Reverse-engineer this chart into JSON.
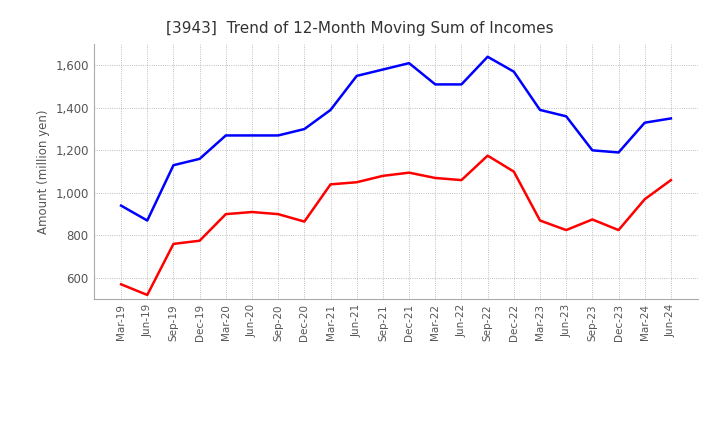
{
  "title": "[3943]  Trend of 12-Month Moving Sum of Incomes",
  "ylabel": "Amount (million yen)",
  "background_color": "#ffffff",
  "grid_color": "#aaaaaa",
  "x_labels": [
    "Mar-19",
    "Jun-19",
    "Sep-19",
    "Dec-19",
    "Mar-20",
    "Jun-20",
    "Sep-20",
    "Dec-20",
    "Mar-21",
    "Jun-21",
    "Sep-21",
    "Dec-21",
    "Mar-22",
    "Jun-22",
    "Sep-22",
    "Dec-22",
    "Mar-23",
    "Jun-23",
    "Sep-23",
    "Dec-23",
    "Mar-24",
    "Jun-24"
  ],
  "ordinary_income": [
    940,
    870,
    1130,
    1160,
    1270,
    1270,
    1270,
    1300,
    1390,
    1550,
    1580,
    1610,
    1510,
    1510,
    1640,
    1570,
    1390,
    1360,
    1200,
    1190,
    1330,
    1350
  ],
  "net_income": [
    570,
    520,
    760,
    775,
    900,
    910,
    900,
    865,
    1040,
    1050,
    1080,
    1095,
    1070,
    1060,
    1175,
    1100,
    870,
    825,
    875,
    825,
    970,
    1060
  ],
  "ordinary_color": "#0000ff",
  "net_color": "#ff0000",
  "ylim_min": 500,
  "ylim_max": 1700,
  "yticks": [
    600,
    800,
    1000,
    1200,
    1400,
    1600
  ],
  "line_width": 1.8,
  "title_color": "#333333",
  "tick_color": "#555555"
}
